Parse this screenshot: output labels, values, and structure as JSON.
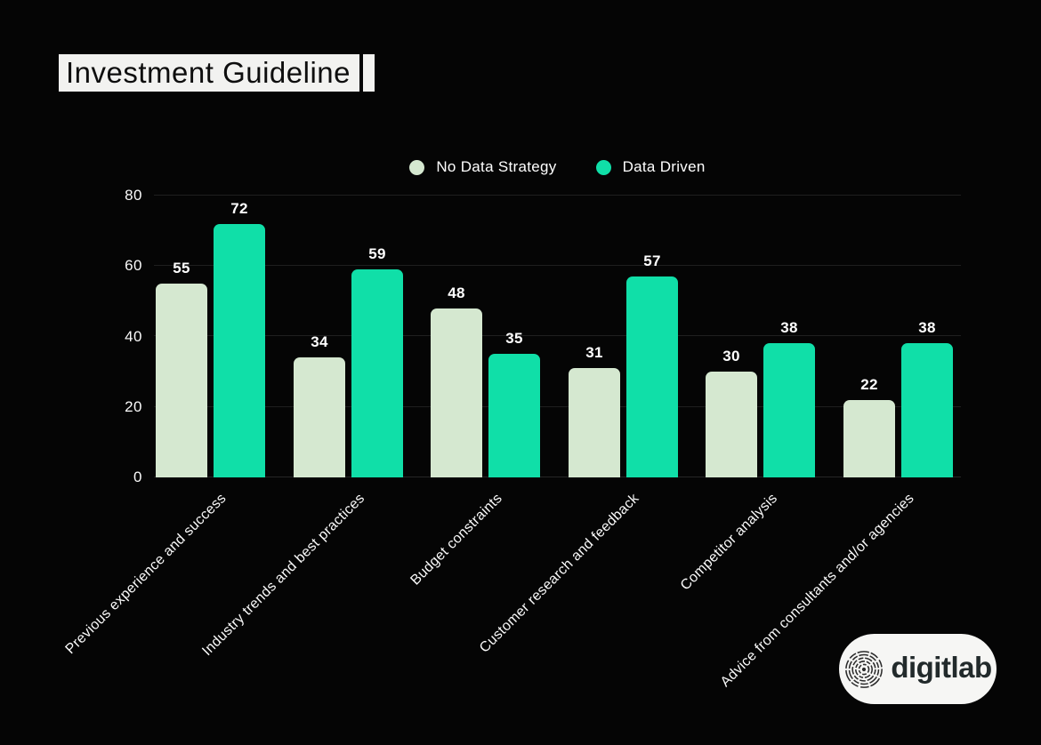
{
  "page": {
    "background": "#050505"
  },
  "title": {
    "text": "Investment Guideline"
  },
  "legend": {
    "items": [
      {
        "label": "No Data Strategy",
        "color": "#d5e8d0"
      },
      {
        "label": "Data Driven",
        "color": "#10dfa8"
      }
    ]
  },
  "chart_data": {
    "type": "bar",
    "title": "Investment Guideline",
    "categories": [
      "Previous experience and success",
      "Industry trends and best practices",
      "Budget constraints",
      "Customer research and feedback",
      "Competitor analysis",
      "Advice from consultants and/or agencies"
    ],
    "series": [
      {
        "name": "No Data Strategy",
        "color": "#d5e8d0",
        "values": [
          55,
          34,
          48,
          31,
          30,
          22
        ]
      },
      {
        "name": "Data Driven",
        "color": "#10dfa8",
        "values": [
          72,
          59,
          35,
          57,
          38,
          38
        ]
      }
    ],
    "ylim": [
      0,
      80
    ],
    "yticks": [
      0,
      20,
      40,
      60,
      80
    ],
    "grid": true,
    "legend_position": "top-center",
    "xlabel": "",
    "ylabel": ""
  },
  "logo": {
    "text": "digitlab",
    "icon": "fingerprint-icon"
  }
}
